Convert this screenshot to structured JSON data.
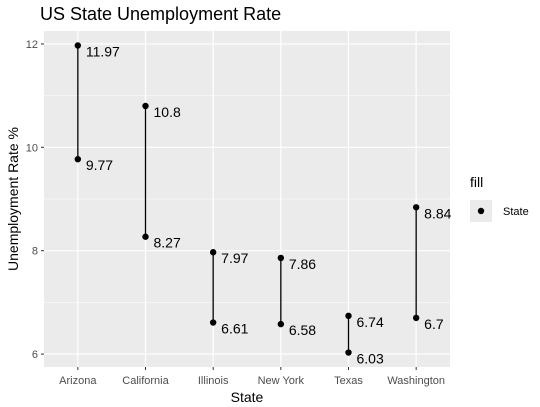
{
  "chart_data": {
    "type": "dumbbell",
    "title": "US State Unemployment Rate",
    "xlabel": "State",
    "ylabel": "Unemployment Rate %",
    "categories": [
      "Arizona",
      "California",
      "Illinois",
      "New York",
      "Texas",
      "Washington"
    ],
    "series": [
      {
        "values": [
          9.77,
          8.27,
          6.61,
          6.58,
          6.03,
          6.7
        ],
        "labels": [
          "9.77",
          "8.27",
          "6.61",
          "6.58",
          "6.03",
          "6.7"
        ]
      },
      {
        "values": [
          11.97,
          10.8,
          7.97,
          7.86,
          6.74,
          8.84
        ],
        "labels": [
          "11.97",
          "10.8",
          "7.97",
          "7.86",
          "6.74",
          "8.84"
        ]
      }
    ],
    "yticks": [
      6,
      8,
      10,
      12
    ],
    "ylim": [
      5.75,
      12.25
    ],
    "grid": true,
    "legend": {
      "title": "fill",
      "entries": [
        "State"
      ],
      "placement": "right"
    }
  }
}
